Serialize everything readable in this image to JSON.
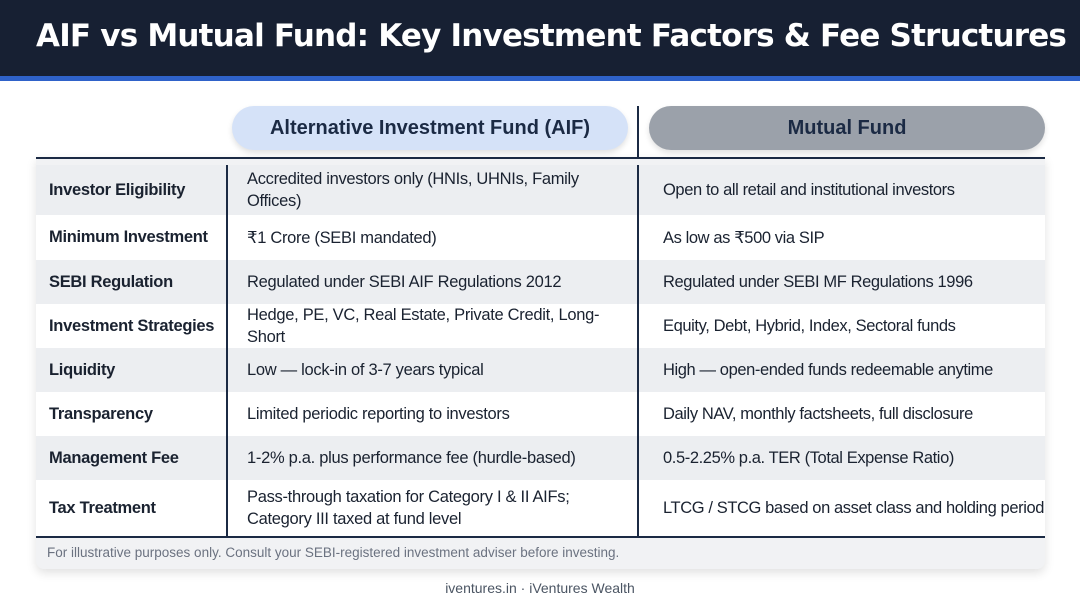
{
  "title": "AIF vs Mutual Fund: Key Investment Factors & Fee Structures",
  "columns": {
    "aif": "Alternative Investment Fund (AIF)",
    "mf": "Mutual Fund"
  },
  "rows": [
    {
      "label": "Investor Eligibility",
      "aif": "Accredited investors only (HNIs, UHNIs, Family Offices)",
      "mf": "Open to all retail and institutional investors"
    },
    {
      "label": "Minimum Investment",
      "aif": "₹1 Crore (SEBI mandated)",
      "mf": "As low as ₹500 via SIP"
    },
    {
      "label": "SEBI Regulation",
      "aif": "Regulated under SEBI AIF Regulations 2012",
      "mf": "Regulated under SEBI MF Regulations 1996"
    },
    {
      "label": "Investment Strategies",
      "aif": "Hedge, PE, VC, Real Estate, Private Credit, Long-Short",
      "mf": "Equity, Debt, Hybrid, Index, Sectoral funds"
    },
    {
      "label": "Liquidity",
      "aif": "Low — lock-in of 3-7 years typical",
      "mf": "High — open-ended funds redeemable anytime"
    },
    {
      "label": "Transparency",
      "aif": "Limited periodic reporting to investors",
      "mf": "Daily NAV, monthly factsheets, full disclosure"
    },
    {
      "label": "Management Fee",
      "aif": "1-2% p.a. plus performance fee (hurdle-based)",
      "mf": "0.5-2.25% p.a. TER (Total Expense Ratio)"
    },
    {
      "label": "Tax Treatment",
      "aif": "Pass-through taxation for Category I & II AIFs; Category III taxed at fund level",
      "mf": "LTCG / STCG based on asset class and holding period"
    }
  ],
  "disclaimer": "For illustrative purposes only. Consult your SEBI-registered investment adviser before investing.",
  "footer": "iventures.in · iVentures Wealth"
}
